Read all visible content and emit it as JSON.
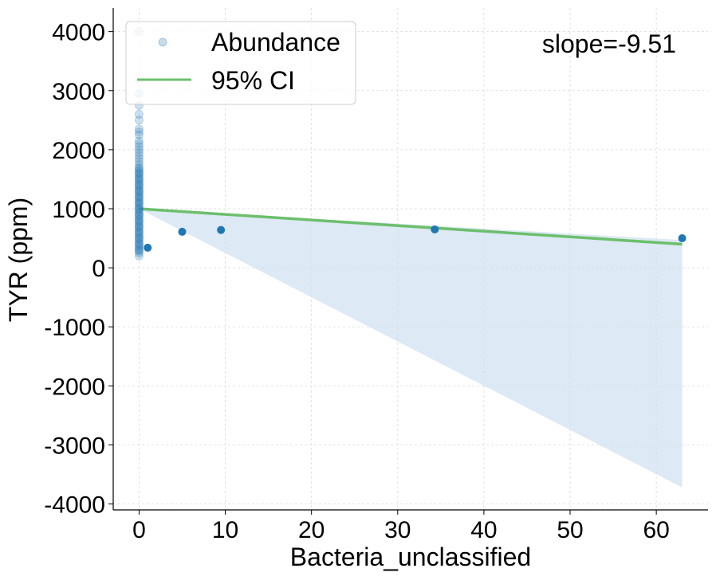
{
  "chart_data": {
    "type": "scatter",
    "xlabel": "Bacteria_unclassified",
    "ylabel": "TYR (ppm)",
    "xlim": [
      -3,
      66
    ],
    "ylim": [
      -4100,
      4400
    ],
    "xticks": [
      0,
      10,
      20,
      30,
      40,
      50,
      60
    ],
    "yticks": [
      -4000,
      -3000,
      -2000,
      -1000,
      0,
      1000,
      2000,
      3000,
      4000
    ],
    "xtick_labels": [
      "0",
      "10",
      "20",
      "30",
      "40",
      "50",
      "60"
    ],
    "ytick_labels": [
      "-4000",
      "-3000",
      "-2000",
      "-1000",
      "0",
      "1000",
      "2000",
      "3000",
      "4000"
    ],
    "grid": true,
    "legend_position": "top-left",
    "annotation": "slope=-9.51",
    "series": [
      {
        "name": "Abundance",
        "kind": "scatter",
        "color": "#1f77b4",
        "points_zero_abundance": {
          "x": 0,
          "y": [
            4000,
            2950,
            2750,
            2600,
            2500,
            2350,
            2300,
            2250,
            2150,
            2100,
            2050,
            2000,
            1950,
            1900,
            1850,
            1800,
            1750,
            1700,
            1680,
            1650,
            1620,
            1600,
            1580,
            1550,
            1520,
            1500,
            1480,
            1450,
            1420,
            1400,
            1380,
            1350,
            1320,
            1300,
            1280,
            1250,
            1220,
            1200,
            1180,
            1150,
            1120,
            1100,
            1080,
            1050,
            1020,
            1000,
            980,
            950,
            920,
            900,
            880,
            850,
            820,
            800,
            780,
            750,
            720,
            700,
            680,
            650,
            620,
            600,
            580,
            550,
            520,
            500,
            480,
            450,
            420,
            400,
            380,
            350,
            320,
            300,
            280,
            250,
            200
          ]
        },
        "points": [
          {
            "x": 1.0,
            "y": 340
          },
          {
            "x": 5.0,
            "y": 610
          },
          {
            "x": 9.5,
            "y": 640
          },
          {
            "x": 34.3,
            "y": 650
          },
          {
            "x": 63.0,
            "y": 500
          }
        ]
      },
      {
        "name": "95% CI",
        "kind": "regression",
        "color": "#6cbf6c",
        "line": {
          "x": [
            0,
            63
          ],
          "y": [
            1000,
            400
          ]
        },
        "band": {
          "x": [
            0,
            63
          ],
          "upper": [
            1000,
            470
          ],
          "lower": [
            1000,
            -3720
          ],
          "color": "#cfe0ef"
        }
      }
    ]
  }
}
